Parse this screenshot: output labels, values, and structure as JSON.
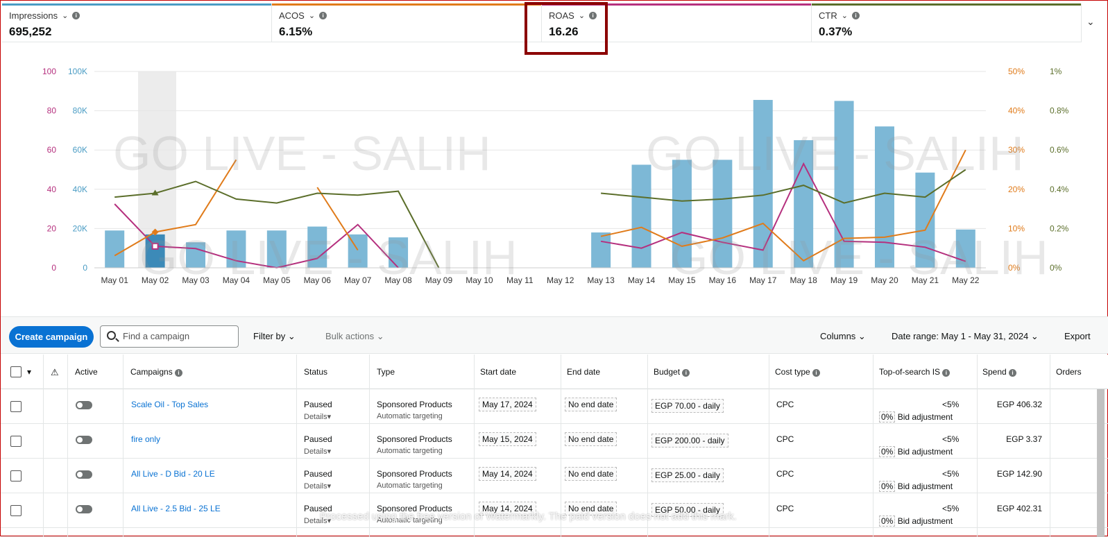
{
  "metrics": [
    {
      "label": "Impressions",
      "value": "695,252",
      "color": "#4a9cc4"
    },
    {
      "label": "ACOS",
      "value": "6.15%",
      "color": "#e07b1a"
    },
    {
      "label": "ROAS",
      "value": "16.26",
      "color": "#b5307e"
    },
    {
      "label": "CTR",
      "value": "0.37%",
      "color": "#5b6e2a"
    }
  ],
  "watermark": "GO LIVE - SALIH",
  "chart_data": {
    "type": "bar",
    "categories": [
      "May 01",
      "May 02",
      "May 03",
      "May 04",
      "May 05",
      "May 06",
      "May 07",
      "May 08",
      "May 09",
      "May 10",
      "May 11",
      "May 12",
      "May 13",
      "May 14",
      "May 15",
      "May 16",
      "May 17",
      "May 18",
      "May 19",
      "May 20",
      "May 21",
      "May 22"
    ],
    "left_axis_roas": [
      "100",
      "80",
      "60",
      "40",
      "20",
      "0"
    ],
    "left_axis_impressions": [
      "100K",
      "80K",
      "60K",
      "40K",
      "20K",
      "0"
    ],
    "right_axis_acos": [
      "50%",
      "40%",
      "30%",
      "20%",
      "10%",
      "0%"
    ],
    "right_axis_ctr": [
      "1%",
      "0.8%",
      "0.6%",
      "0.4%",
      "0.2%",
      "0%"
    ],
    "series": [
      {
        "name": "Impressions",
        "color": "#7db8d6",
        "values": [
          19000,
          17000,
          13000,
          19000,
          19000,
          21000,
          17000,
          15500,
          0,
          0,
          0,
          0,
          18000,
          52500,
          55000,
          55000,
          85500,
          65000,
          85000,
          72000,
          48500,
          19500
        ]
      },
      {
        "name": "ROAS",
        "color": "#b5307e",
        "values": [
          32.5,
          11,
          9.8,
          3.6,
          0,
          4.8,
          22,
          0,
          null,
          null,
          null,
          null,
          13.5,
          10,
          18,
          13,
          9,
          53,
          13.5,
          13,
          10.5,
          3.3
        ]
      },
      {
        "name": "ACOS",
        "color": "#e07b1a",
        "values": [
          3.1,
          9.1,
          11,
          27.5,
          null,
          20.5,
          4.5,
          null,
          null,
          null,
          null,
          null,
          8,
          10.3,
          5.5,
          7.6,
          11.3,
          1.8,
          7.5,
          7.8,
          9.6,
          30
        ]
      },
      {
        "name": "CTR",
        "color": "#5b6e2a",
        "values": [
          0.36,
          0.38,
          0.44,
          0.35,
          0.33,
          0.38,
          0.37,
          0.39,
          0,
          null,
          null,
          null,
          0.38,
          0.36,
          0.34,
          0.35,
          0.37,
          0.42,
          0.33,
          0.38,
          0.36,
          0.5
        ]
      }
    ]
  },
  "toolbar": {
    "create": "Create campaign",
    "search_placeholder": "Find a campaign",
    "filter": "Filter by",
    "bulk": "Bulk actions",
    "columns": "Columns",
    "date_range": "Date range: May 1 - May 31, 2024",
    "export": "Export"
  },
  "table": {
    "headers": {
      "active": "Active",
      "campaigns": "Campaigns",
      "status": "Status",
      "type": "Type",
      "start": "Start date",
      "end": "End date",
      "budget": "Budget",
      "cost_type": "Cost type",
      "tos": "Top-of-search IS",
      "spend": "Spend",
      "orders": "Orders"
    },
    "rows": [
      {
        "name": "Scale Oil - Top Sales",
        "status": "Paused",
        "details": "Details",
        "type": "Sponsored Products",
        "targeting": "Automatic targeting",
        "start": "May 17, 2024",
        "end": "No end date",
        "budget": "EGP 70.00 - daily",
        "cost": "CPC",
        "tos": "<5%",
        "bid_pct": "0%",
        "bid": "Bid adjustment",
        "spend": "EGP 406.32"
      },
      {
        "name": "fire only",
        "status": "Paused",
        "details": "Details",
        "type": "Sponsored Products",
        "targeting": "Automatic targeting",
        "start": "May 15, 2024",
        "end": "No end date",
        "budget": "EGP 200.00 - daily",
        "cost": "CPC",
        "tos": "<5%",
        "bid_pct": "0%",
        "bid": "Bid adjustment",
        "spend": "EGP 3.37"
      },
      {
        "name": "All Live - D Bid - 20 LE",
        "status": "Paused",
        "details": "Details",
        "type": "Sponsored Products",
        "targeting": "Automatic targeting",
        "start": "May 14, 2024",
        "end": "No end date",
        "budget": "EGP 25.00 - daily",
        "cost": "CPC",
        "tos": "<5%",
        "bid_pct": "0%",
        "bid": "Bid adjustment",
        "spend": "EGP 142.90"
      },
      {
        "name": "All Live - 2.5 Bid - 25 LE",
        "status": "Paused",
        "details": "Details",
        "type": "Sponsored Products",
        "targeting": "Automatic targeting",
        "start": "May 14, 2024",
        "end": "No end date",
        "budget": "EGP 50.00 - daily",
        "cost": "CPC",
        "tos": "<5%",
        "bid_pct": "0%",
        "bid": "Bid adjustment",
        "spend": "EGP 402.31"
      }
    ]
  },
  "footer_watermark": "Processed using the free version of Watermarkly. The paid version does not add this mark."
}
